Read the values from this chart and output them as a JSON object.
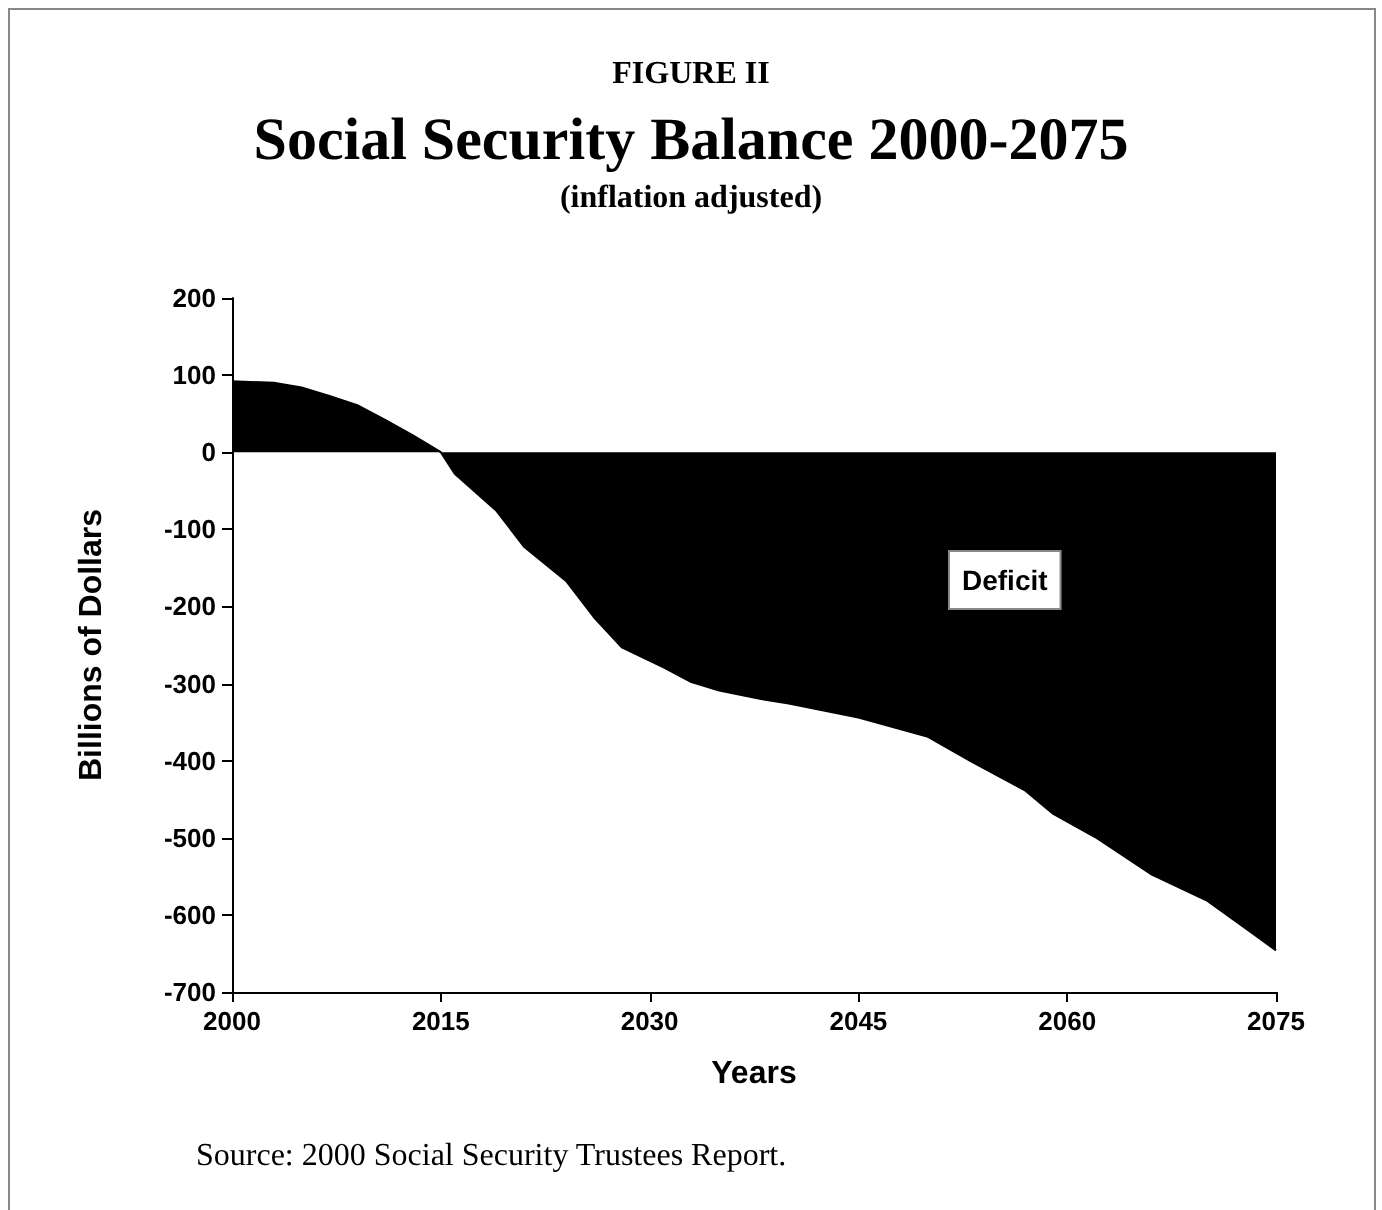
{
  "chart_data": {
    "type": "area",
    "title": "Social Security Balance 2000-2075",
    "subtitle": "(inflation adjusted)",
    "xlabel": "Years",
    "ylabel": "Billions of Dollars",
    "annotations": [
      "FIGURE II",
      "Deficit",
      "Source: 2000 Social Security Trustees Report."
    ],
    "x": [
      2000,
      2003,
      2005,
      2007,
      2009,
      2011,
      2013,
      2015,
      2016,
      2019,
      2021,
      2024,
      2026,
      2028,
      2031,
      2033,
      2035,
      2038,
      2040,
      2045,
      2050,
      2053,
      2057,
      2059,
      2062,
      2066,
      2070,
      2073,
      2075
    ],
    "series": [
      {
        "color": "#000000",
        "values": [
          92,
          90,
          84,
          73,
          61,
          42,
          22,
          0,
          -28,
          -76,
          -123,
          -167,
          -214,
          -253,
          -279,
          -298,
          -309,
          -320,
          -326,
          -344,
          -369,
          -400,
          -439,
          -469,
          -499,
          -547,
          -581,
          -620,
          -646
        ]
      }
    ],
    "xlim": [
      2000,
      2075
    ],
    "xticks": [
      2000,
      2015,
      2030,
      2045,
      2060,
      2075
    ],
    "ylim": [
      -700,
      200
    ],
    "yticks": [
      -700,
      -600,
      -500,
      -400,
      -300,
      -200,
      -100,
      0,
      100,
      200
    ],
    "grid": false
  }
}
